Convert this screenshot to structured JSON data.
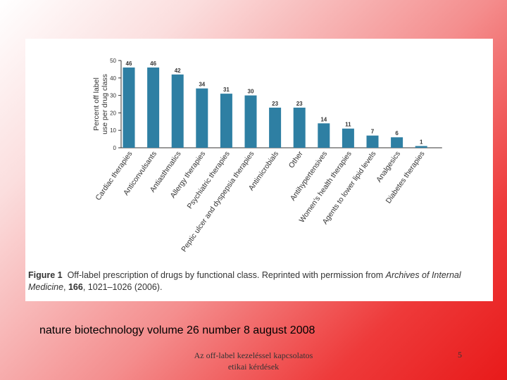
{
  "chart_data": {
    "type": "bar",
    "title": "",
    "xlabel": "",
    "ylabel": "Percent off label use per drug class",
    "ylim": [
      0,
      50
    ],
    "yticks": [
      0,
      10,
      20,
      30,
      40,
      50
    ],
    "grid": false,
    "bar_color": "#2e7fa3",
    "categories": [
      "Cardiac therapies",
      "Anticonvulsants",
      "Antiasthmatics",
      "Allergy therapies",
      "Psychiatric therapies",
      "Peptic ulcer and dyspepsia therapies",
      "Antimicrobials",
      "Other",
      "Antihypertensives",
      "Women's health therapies",
      "Agents to lower lipid levels",
      "Analgesics",
      "Diabetes therapies"
    ],
    "values": [
      46,
      46,
      42,
      34,
      31,
      30,
      23,
      23,
      14,
      11,
      7,
      6,
      1
    ]
  },
  "caption": {
    "figure_label": "Figure 1",
    "text_before": "Off-label prescription of drugs by functional class. Reprinted with permission from",
    "journal": "Archives of Internal Medicine",
    "volume": "166",
    "pages_year": "1021–1026 (2006)."
  },
  "source_line": "nature biotechnology volume 26 number 8 august 2008",
  "footer": {
    "title_line1": "Az off-label kezeléssel kapcsolatos",
    "title_line2": "etikai kérdések",
    "page_number": "5"
  }
}
